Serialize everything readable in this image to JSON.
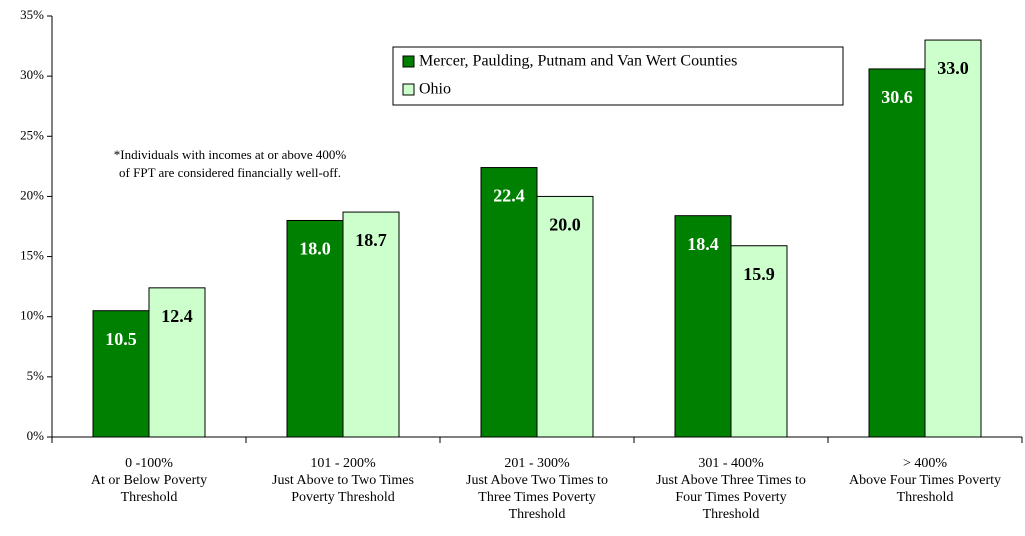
{
  "chart_data": {
    "type": "bar",
    "categories": [
      "0 -100%\nAt or Below Poverty\nThreshold",
      "101 - 200%\nJust Above to Two Times\nPoverty Threshold",
      "201 - 300%\nJust Above Two Times to\nThree Times Poverty\nThreshold",
      "301 - 400%\nJust Above Three Times to\nFour Times Poverty\nThreshold",
      "> 400%\nAbove Four Times Poverty\nThreshold"
    ],
    "series": [
      {
        "name": "Mercer, Paulding, Putnam and Van Wert Counties",
        "color": "#008000",
        "values": [
          10.5,
          18.0,
          22.4,
          18.4,
          30.6
        ],
        "value_labels": [
          "10.5",
          "18.0",
          "22.4",
          "18.4",
          "30.6"
        ]
      },
      {
        "name": "Ohio",
        "color": "#ccffcc",
        "values": [
          12.4,
          18.7,
          20.0,
          15.9,
          33.0
        ],
        "value_labels": [
          "12.4",
          "18.7",
          "20.0",
          "15.9",
          "33.0"
        ]
      }
    ],
    "ylim": [
      0,
      35
    ],
    "yticks": [
      {
        "value": 0,
        "label": "0%"
      },
      {
        "value": 5,
        "label": "5%"
      },
      {
        "value": 10,
        "label": "10%"
      },
      {
        "value": 15,
        "label": "15%"
      },
      {
        "value": 20,
        "label": "20%"
      },
      {
        "value": 25,
        "label": "25%"
      },
      {
        "value": 30,
        "label": "30%"
      },
      {
        "value": 35,
        "label": "35%"
      }
    ],
    "annotation": "*Individuals with incomes at or above 400%\nof FPT are considered financially well-off.",
    "grid": false
  }
}
